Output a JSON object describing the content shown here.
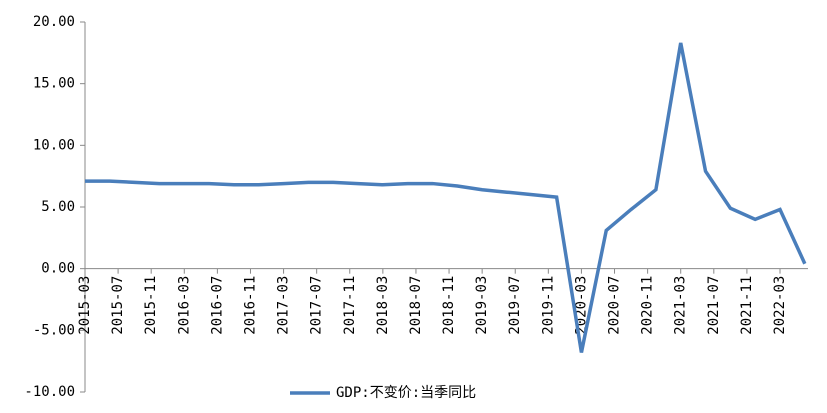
{
  "chart_data": {
    "type": "line",
    "x": [
      "2015-03",
      "2015-06",
      "2015-09",
      "2015-12",
      "2016-03",
      "2016-06",
      "2016-09",
      "2016-12",
      "2017-03",
      "2017-06",
      "2017-09",
      "2017-12",
      "2018-03",
      "2018-06",
      "2018-09",
      "2018-12",
      "2019-03",
      "2019-06",
      "2019-09",
      "2019-12",
      "2020-03",
      "2020-06",
      "2020-09",
      "2020-12",
      "2021-03",
      "2021-06",
      "2021-09",
      "2021-12",
      "2022-03",
      "2022-06"
    ],
    "series": [
      {
        "name": "GDP:不变价:当季同比",
        "color": "#4a7ebb",
        "values": [
          7.1,
          7.1,
          7.0,
          6.9,
          6.9,
          6.9,
          6.8,
          6.8,
          6.9,
          7.0,
          7.0,
          6.9,
          6.8,
          6.9,
          6.9,
          6.7,
          6.4,
          6.2,
          6.0,
          5.8,
          -6.8,
          3.1,
          4.8,
          6.4,
          18.3,
          7.9,
          4.9,
          4.0,
          4.8,
          0.4
        ]
      }
    ],
    "xticks": [
      "2015-03",
      "2015-07",
      "2015-11",
      "2016-03",
      "2016-07",
      "2016-11",
      "2017-03",
      "2017-07",
      "2017-11",
      "2018-03",
      "2018-07",
      "2018-11",
      "2019-03",
      "2019-07",
      "2019-11",
      "2020-03",
      "2020-07",
      "2020-11",
      "2021-03",
      "2021-07",
      "2021-11",
      "2022-03"
    ],
    "ylim": [
      -10,
      20
    ],
    "yticks": [
      {
        "value": -10,
        "label": "-10.00"
      },
      {
        "value": -5,
        "label": "-5.00"
      },
      {
        "value": 0,
        "label": "0.00"
      },
      {
        "value": 5,
        "label": "5.00"
      },
      {
        "value": 10,
        "label": "10.00"
      },
      {
        "value": 15,
        "label": "15.00"
      },
      {
        "value": 20,
        "label": "20.00"
      }
    ],
    "legend": "bottom"
  }
}
